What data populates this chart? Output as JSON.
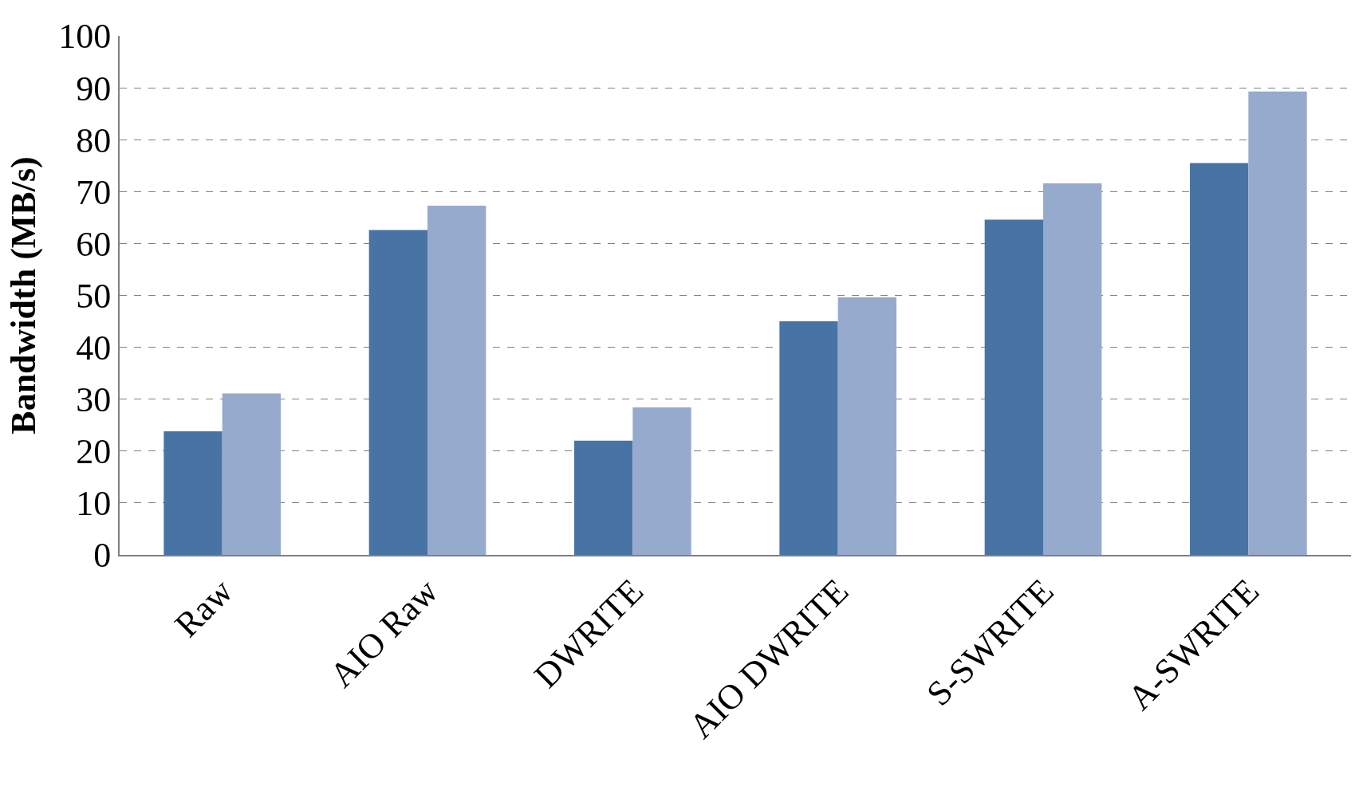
{
  "chart_data": {
    "type": "bar",
    "ylabel": "Bandwidth (MB/s)",
    "categories": [
      "Raw",
      "AIO Raw",
      "DWRITE",
      "AIO DWRITE",
      "S-SWRITE",
      "A-SWRITE"
    ],
    "series": [
      {
        "color": "#4874a5",
        "values": [
          23.8,
          62.6,
          22.0,
          45.0,
          64.6,
          75.5
        ]
      },
      {
        "color": "#95aacd",
        "values": [
          31.1,
          67.3,
          28.4,
          49.6,
          71.6,
          89.3
        ]
      }
    ],
    "ylim": [
      0,
      100
    ],
    "yticks": [
      0,
      10,
      20,
      30,
      40,
      50,
      60,
      70,
      80,
      90,
      100
    ],
    "grid": "y"
  }
}
